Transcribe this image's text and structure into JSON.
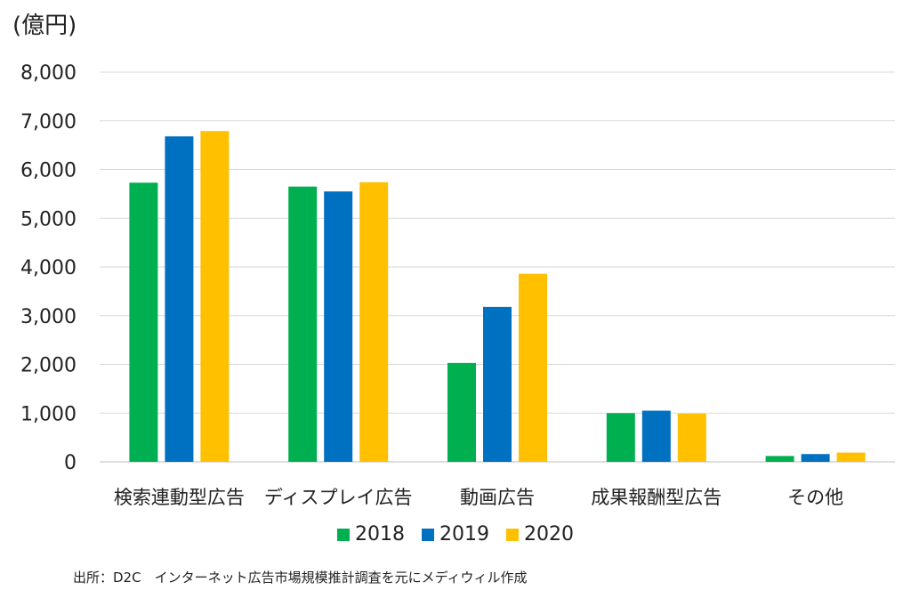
{
  "chart_data": {
    "type": "bar",
    "unit_label": "(億円)",
    "categories": [
      "検索連動型広告",
      "ディスプレイ広告",
      "動画広告",
      "成果報酬型広告",
      "その他"
    ],
    "series": [
      {
        "name": "2018",
        "color": "#00b050",
        "values": [
          5730,
          5650,
          2030,
          1000,
          120
        ]
      },
      {
        "name": "2019",
        "color": "#0070c0",
        "values": [
          6680,
          5550,
          3180,
          1050,
          160
        ]
      },
      {
        "name": "2020",
        "color": "#ffc000",
        "values": [
          6790,
          5740,
          3860,
          990,
          190
        ]
      }
    ],
    "ylim": [
      0,
      8000
    ],
    "yticks": [
      0,
      1000,
      2000,
      3000,
      4000,
      5000,
      6000,
      7000,
      8000
    ],
    "ytick_labels": [
      "0",
      "1,000",
      "2,000",
      "3,000",
      "4,000",
      "5,000",
      "6,000",
      "7,000",
      "8,000"
    ],
    "grid": true,
    "legend_position": "bottom"
  },
  "source_note": "出所：D2C　インターネット広告市場規模推計調査を元にメディウィル作成"
}
